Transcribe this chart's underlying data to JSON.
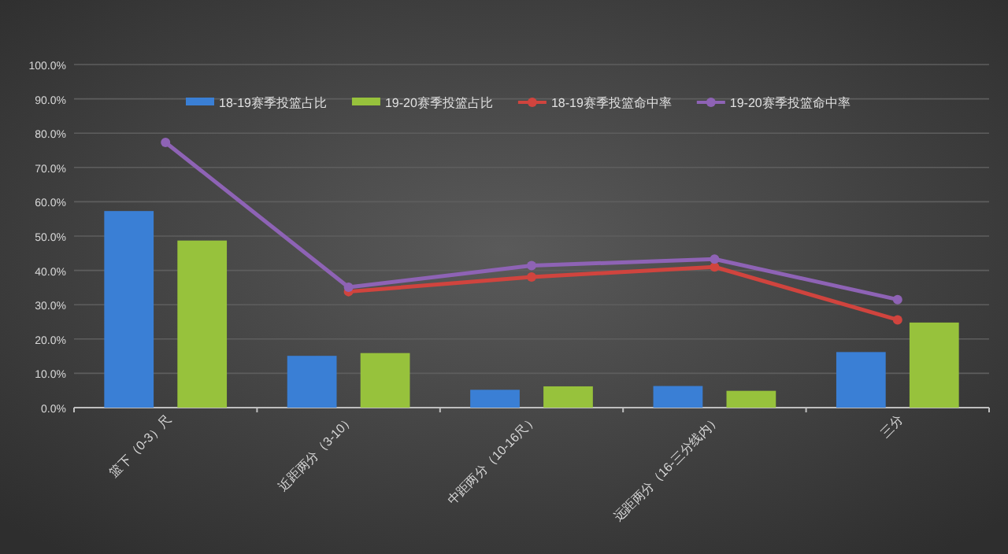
{
  "chart_data": {
    "type": "bar",
    "categories": [
      "篮下（0-3）尺",
      "近距两分（3-10）",
      "中距两分（10-16尺）",
      "远距两分（16-三分线内）",
      "三分"
    ],
    "series": [
      {
        "name": "18-19赛季投篮占比",
        "color": "#3a7fd5",
        "values": [
          57.3,
          15.1,
          5.2,
          6.3,
          16.2
        ]
      },
      {
        "name": "19-20赛季投篮占比",
        "color": "#97c23c",
        "values": [
          48.7,
          15.9,
          6.2,
          4.9,
          24.8
        ]
      },
      {
        "name": "18-19赛季投篮命中率",
        "type": "line",
        "color": "#d0443e",
        "values": [
          null,
          33.8,
          38.1,
          41.0,
          25.6
        ]
      },
      {
        "name": "19-20赛季投篮命中率",
        "type": "line",
        "color": "#8e63b5",
        "values": [
          77.3,
          35.1,
          41.4,
          43.3,
          31.5
        ]
      }
    ],
    "ylim": [
      0,
      100
    ],
    "yticks": [
      {
        "value": 0,
        "label": "0.0%"
      },
      {
        "value": 10,
        "label": "10.0%"
      },
      {
        "value": 20,
        "label": "20.0%"
      },
      {
        "value": 30,
        "label": "30.0%"
      },
      {
        "value": 40,
        "label": "40.0%"
      },
      {
        "value": 50,
        "label": "50.0%"
      },
      {
        "value": 60,
        "label": "60.0%"
      },
      {
        "value": 70,
        "label": "70.0%"
      },
      {
        "value": 80,
        "label": "80.0%"
      },
      {
        "value": 90,
        "label": "90.0%"
      },
      {
        "value": 100,
        "label": "100.0%"
      }
    ],
    "grid": "y",
    "legend": "top",
    "marker": "circle"
  }
}
